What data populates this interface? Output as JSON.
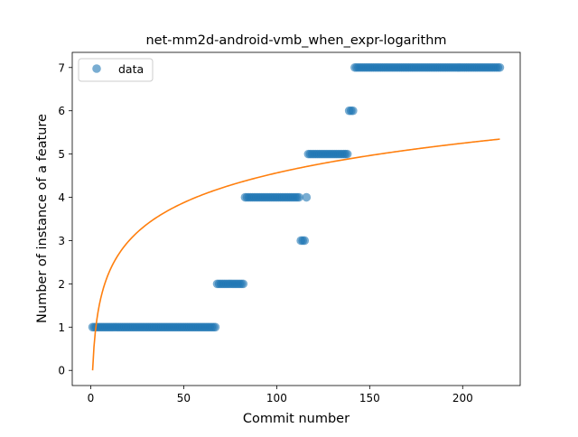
{
  "chart_data": {
    "type": "scatter",
    "title": "net-mm2d-android-vmb_when_expr-logarithm",
    "xlabel": "Commit number",
    "ylabel": "Number of instance of a feature",
    "xlim": [
      -9.95,
      230.95
    ],
    "ylim": [
      -0.35,
      7.35
    ],
    "xticks": [
      0,
      50,
      100,
      150,
      200
    ],
    "yticks": [
      0,
      1,
      2,
      3,
      4,
      5,
      6,
      7
    ],
    "legend": {
      "position": "top-left",
      "entries": [
        "data"
      ]
    },
    "colors": {
      "data": "#1f77b4",
      "fit": "#ff7f0e"
    },
    "scatter_runs": [
      {
        "x_start": 1,
        "x_end": 67,
        "y": 1
      },
      {
        "x_start": 68,
        "x_end": 82,
        "y": 2
      },
      {
        "x_start": 83,
        "x_end": 112,
        "y": 4
      },
      {
        "x_start": 113,
        "x_end": 115,
        "y": 3
      },
      {
        "x_start": 116,
        "x_end": 116,
        "y": 4
      },
      {
        "x_start": 117,
        "x_end": 138,
        "y": 5
      },
      {
        "x_start": 139,
        "x_end": 141,
        "y": 6
      },
      {
        "x_start": 142,
        "x_end": 220,
        "y": 7
      }
    ],
    "fit_curve": {
      "form": "a*ln(x)",
      "a": 0.991,
      "x_min": 1,
      "x_max": 220
    }
  }
}
